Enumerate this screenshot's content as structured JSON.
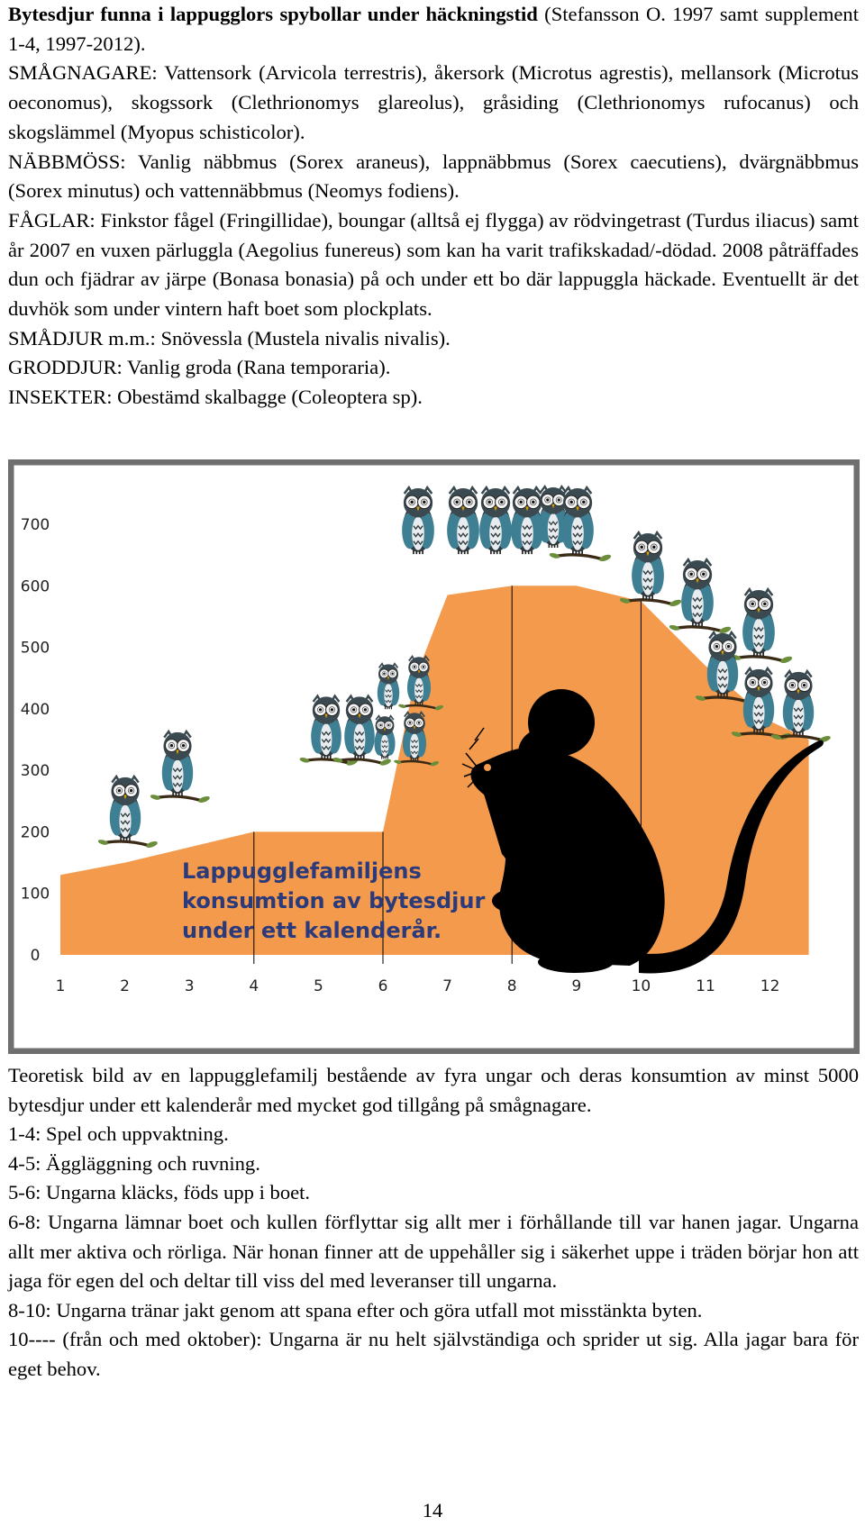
{
  "top_paragraphs": [
    {
      "head": "Bytesdjur funna i lappugglors spybollar under häckningstid",
      "text": " (Stefansson O. 1997 samt supplement 1-4, 1997-2012)."
    },
    {
      "text": "SMÅGNAGARE: Vattensork (Arvicola terrestris), åkersork (Microtus agrestis), mellansork (Microtus oeconomus), skogssork (Clethrionomys glareolus), gråsiding (Clethrionomys rufocanus) och skogslämmel (Myopus schisticolor)."
    },
    {
      "text": "NÄBBMÖSS: Vanlig näbbmus (Sorex araneus), lappnäbbmus (Sorex caecutiens), dvärgnäbbmus (Sorex minutus) och vattennäbbmus (Neomys fodiens)."
    },
    {
      "text": "FÅGLAR: Finkstor fågel (Fringillidae), boungar (alltså ej flygga) av rödvingetrast (Turdus iliacus) samt år 2007 en vuxen pärluggla (Aegolius funereus) som kan ha varit trafikskadad/-dödad. 2008 påträffades dun och fjädrar av järpe (Bonasa bonasia) på och under ett bo där lappuggla häckade. Eventuellt är det duvhök som under vintern haft boet som plockplats."
    },
    {
      "text": "SMÅDJUR m.m.: Snövessla (Mustela nivalis nivalis)."
    },
    {
      "text": "GRODDJUR: Vanlig groda (Rana temporaria)."
    },
    {
      "text": "INSEKTER: Obestämd skalbagge (Coleoptera sp)."
    }
  ],
  "chart_data": {
    "type": "area",
    "title": "Lappugglefamiljens konsumtion av bytesdjur under ett kalenderår.",
    "title_lines": [
      "Lappugglefamiljens",
      "konsumtion av bytesdjur",
      "under ett kalenderår."
    ],
    "xlabel": "",
    "ylabel": "",
    "x": [
      1,
      2,
      3,
      4,
      5,
      6,
      6.5,
      7,
      8,
      9,
      10,
      11,
      12,
      12.6
    ],
    "y": [
      130,
      150,
      175,
      200,
      200,
      200,
      450,
      585,
      600,
      600,
      575,
      470,
      380,
      350
    ],
    "x_ticks": [
      "1",
      "2",
      "3",
      "4",
      "5",
      "6",
      "7",
      "8",
      "9",
      "10",
      "11",
      "12"
    ],
    "y_ticks": [
      "0",
      "100",
      "200",
      "300",
      "400",
      "500",
      "600",
      "700"
    ],
    "ylim": [
      0,
      700
    ],
    "xlim": [
      1,
      12.6
    ],
    "vertical_lines_at": [
      4,
      6,
      8,
      10
    ],
    "grid": false,
    "legend": "none",
    "fill_color": "#f39a4c",
    "background_color": "#ffffff",
    "frame_color": "#6f6f6f",
    "decorations": [
      "owl-icons",
      "mouse-silhouette"
    ]
  },
  "caption_paragraphs": [
    "Teoretisk bild av en lappugglefamilj bestående av fyra ungar och deras konsumtion av minst 5000 bytesdjur under ett kalenderår med mycket god tillgång på smågnagare.",
    "1-4: Spel och uppvaktning.",
    "4-5: Äggläggning och ruvning.",
    "5-6: Ungarna kläcks, föds upp i boet.",
    "6-8: Ungarna lämnar boet och kullen förflyttar sig allt mer i förhållande till var hanen jagar. Ungarna allt mer aktiva och rörliga. När honan finner att de uppehåller sig i säkerhet uppe i träden börjar hon att jaga för egen del och deltar till viss del med leveranser till ungarna.",
    "8-10: Ungarna tränar jakt genom att spana efter och göra utfall mot misstänkta byten.",
    "10---- (från och med oktober): Ungarna är nu helt självständiga och sprider ut sig. Alla jagar bara för eget behov."
  ],
  "page_number": "14"
}
